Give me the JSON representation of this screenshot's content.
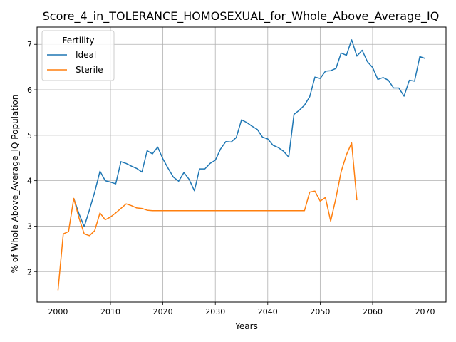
{
  "chart_data": {
    "type": "line",
    "title": "Score_4_in_TOLERANCE_HOMOSEXUAL_for_Whole_Above_Average_IQ",
    "xlabel": "Years",
    "ylabel": "% of Whole Above_Average_IQ Population",
    "xlim": [
      1996,
      2074
    ],
    "ylim": [
      1.33,
      7.38
    ],
    "xticks": [
      2000,
      2010,
      2020,
      2030,
      2040,
      2050,
      2060,
      2070
    ],
    "yticks": [
      2,
      3,
      4,
      5,
      6,
      7
    ],
    "grid": true,
    "legend": {
      "title": "Fertility",
      "position": "top-left"
    },
    "series": [
      {
        "name": "Ideal",
        "color": "#1f77b4",
        "x": [
          2003,
          2004,
          2005,
          2006,
          2007,
          2008,
          2009,
          2010,
          2011,
          2012,
          2013,
          2014,
          2015,
          2016,
          2017,
          2018,
          2019,
          2020,
          2021,
          2022,
          2023,
          2024,
          2025,
          2026,
          2027,
          2028,
          2029,
          2030,
          2031,
          2032,
          2033,
          2034,
          2035,
          2036,
          2037,
          2038,
          2039,
          2040,
          2041,
          2042,
          2043,
          2044,
          2045,
          2046,
          2047,
          2048,
          2049,
          2050,
          2051,
          2052,
          2053,
          2054,
          2055,
          2056,
          2057,
          2058,
          2059,
          2060,
          2061,
          2062,
          2063,
          2064,
          2065,
          2066,
          2067,
          2068,
          2069,
          2070
        ],
        "y": [
          3.61,
          3.27,
          2.99,
          3.36,
          3.75,
          4.21,
          4.0,
          3.97,
          3.93,
          4.42,
          4.38,
          4.32,
          4.27,
          4.19,
          4.66,
          4.59,
          4.74,
          4.48,
          4.27,
          4.08,
          3.99,
          4.18,
          4.03,
          3.78,
          4.26,
          4.26,
          4.38,
          4.45,
          4.7,
          4.86,
          4.85,
          4.95,
          5.34,
          5.28,
          5.2,
          5.13,
          4.96,
          4.92,
          4.78,
          4.73,
          4.65,
          4.52,
          5.46,
          5.55,
          5.66,
          5.85,
          6.28,
          6.25,
          6.41,
          6.42,
          6.47,
          6.81,
          6.76,
          7.1,
          6.74,
          6.87,
          6.62,
          6.49,
          6.23,
          6.27,
          6.21,
          6.04,
          6.04,
          5.86,
          6.21,
          6.19,
          6.73,
          6.69
        ]
      },
      {
        "name": "Sterile",
        "color": "#ff7f0e",
        "x": [
          2000,
          2001,
          2002,
          2003,
          2004,
          2005,
          2006,
          2007,
          2008,
          2009,
          2010,
          2011,
          2012,
          2013,
          2014,
          2015,
          2016,
          2017,
          2018,
          2019,
          2020,
          2021,
          2022,
          2023,
          2024,
          2025,
          2026,
          2027,
          2028,
          2029,
          2030,
          2031,
          2032,
          2033,
          2034,
          2035,
          2036,
          2037,
          2038,
          2039,
          2040,
          2041,
          2042,
          2043,
          2044,
          2045,
          2046,
          2047,
          2048,
          2049,
          2050,
          2051,
          2052,
          2053,
          2054,
          2055,
          2056,
          2057
        ],
        "y": [
          1.59,
          2.83,
          2.88,
          3.61,
          3.18,
          2.83,
          2.79,
          2.9,
          3.29,
          3.14,
          3.2,
          3.29,
          3.39,
          3.49,
          3.45,
          3.4,
          3.39,
          3.35,
          3.34,
          3.34,
          3.34,
          3.34,
          3.34,
          3.34,
          3.34,
          3.34,
          3.34,
          3.34,
          3.34,
          3.34,
          3.34,
          3.34,
          3.34,
          3.34,
          3.34,
          3.34,
          3.34,
          3.34,
          3.34,
          3.34,
          3.34,
          3.34,
          3.34,
          3.34,
          3.34,
          3.34,
          3.34,
          3.34,
          3.75,
          3.77,
          3.55,
          3.63,
          3.11,
          3.62,
          4.2,
          4.57,
          4.83,
          3.57
        ]
      }
    ]
  }
}
